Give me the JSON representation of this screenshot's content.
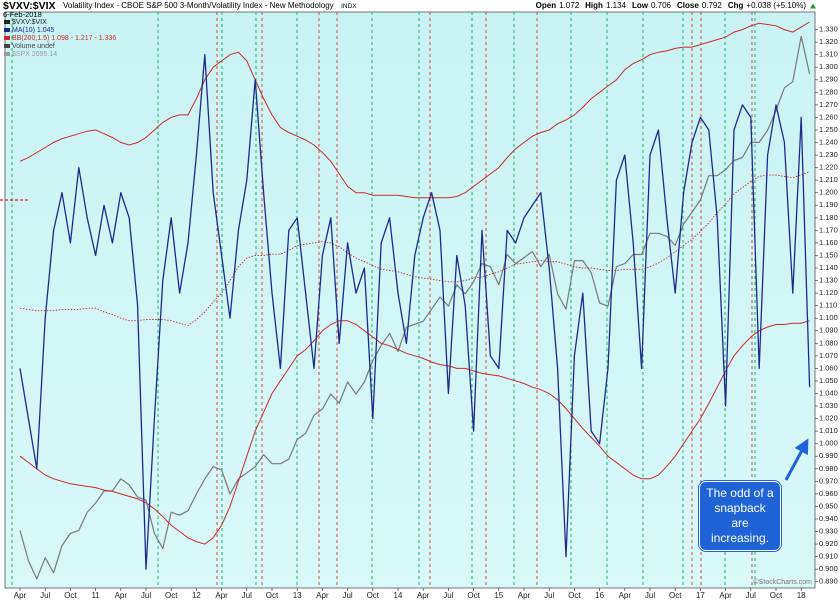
{
  "chart_data": {
    "type": "line",
    "symbol": "$VXV:$VIX",
    "title": "Volatility Index - CBOE S&P 500 3-Month/Volatility Index - New Methodology",
    "exchange": "INDX",
    "date": "6-Feb-2018",
    "quote": [
      [
        "Open",
        "1.072"
      ],
      [
        "High",
        "1.134"
      ],
      [
        "Low",
        "0.706"
      ],
      [
        "Close",
        "0.792"
      ],
      [
        "Chg",
        "+0.038 (+5.10%)"
      ]
    ],
    "price_label": "$VXV:$VIX",
    "volume_label": "Volume undef",
    "watermark": "©StockCharts.com",
    "annotation": "The odd of a snapback are increasing.",
    "categories": [
      "Apr",
      null,
      null,
      "Jul",
      null,
      null,
      "Oct",
      null,
      null,
      "11",
      null,
      null,
      "Apr",
      null,
      null,
      "Jul",
      null,
      null,
      "Oct",
      null,
      null,
      "12",
      null,
      null,
      "Apr",
      null,
      null,
      "Jul",
      null,
      null,
      "Oct",
      null,
      null,
      "13",
      null,
      null,
      "Apr",
      null,
      null,
      "Jul",
      null,
      null,
      "Oct",
      null,
      null,
      "14",
      null,
      null,
      "Apr",
      null,
      null,
      "Jul",
      null,
      null,
      "Oct",
      null,
      null,
      "15",
      null,
      null,
      "Apr",
      null,
      null,
      "Jul",
      null,
      null,
      "Oct",
      null,
      null,
      "16",
      null,
      null,
      "Apr",
      null,
      null,
      "Jul",
      null,
      null,
      "Oct",
      null,
      null,
      "17",
      null,
      null,
      "Apr",
      null,
      null,
      "Jul",
      null,
      null,
      "Oct",
      null,
      null,
      "18",
      null
    ],
    "series": [
      {
        "name": "$SPX 2695.14",
        "color": "#7a7a7a",
        "axis": "y2",
        "values": [
          1190,
          1090,
          1030,
          1100,
          1050,
          1140,
          1180,
          1190,
          1250,
          1280,
          1320,
          1320,
          1360,
          1340,
          1300,
          1290,
          1180,
          1130,
          1250,
          1240,
          1255,
          1310,
          1360,
          1400,
          1390,
          1310,
          1360,
          1380,
          1400,
          1440,
          1410,
          1410,
          1425,
          1490,
          1510,
          1570,
          1590,
          1640,
          1610,
          1680,
          1640,
          1680,
          1750,
          1800,
          1840,
          1780,
          1860,
          1870,
          1880,
          1920,
          1960,
          1930,
          2000,
          1970,
          2010,
          2070,
          2060,
          2000,
          2100,
          2070,
          2090,
          2110,
          2060,
          2100,
          1970,
          1920,
          2080,
          2080,
          2040,
          1940,
          1930,
          2060,
          2070,
          2100,
          2100,
          2170,
          2170,
          2160,
          2130,
          2200,
          2240,
          2280,
          2360,
          2360,
          2380,
          2410,
          2420,
          2470,
          2470,
          2510,
          2575,
          2650,
          2670,
          2820,
          2695
        ]
      },
      {
        "name": "BB(200,1.5) 1.098 - 1.217 - 1.336",
        "color": "#cc2929",
        "values": [
          1.108,
          1.107,
          1.106,
          1.106,
          1.106,
          1.107,
          1.107,
          1.107,
          1.108,
          1.108,
          1.105,
          1.103,
          1.1,
          1.098,
          1.098,
          1.099,
          1.099,
          1.099,
          1.098,
          1.096,
          1.094,
          1.099,
          1.105,
          1.113,
          1.12,
          1.13,
          1.141,
          1.148,
          1.15,
          1.15,
          1.151,
          1.151,
          1.154,
          1.158,
          1.159,
          1.16,
          1.161,
          1.16,
          1.157,
          1.152,
          1.148,
          1.145,
          1.142,
          1.139,
          1.138,
          1.137,
          1.135,
          1.133,
          1.132,
          1.131,
          1.13,
          1.129,
          1.129,
          1.13,
          1.132,
          1.133,
          1.135,
          1.137,
          1.14,
          1.143,
          1.144,
          1.145,
          1.146,
          1.145,
          1.145,
          1.143,
          1.141,
          1.14,
          1.14,
          1.139,
          1.138,
          1.138,
          1.139,
          1.139,
          1.139,
          1.141,
          1.144,
          1.148,
          1.153,
          1.158,
          1.163,
          1.169,
          1.176,
          1.184,
          1.191,
          1.199,
          1.204,
          1.209,
          1.213,
          1.214,
          1.214,
          1.213,
          1.212,
          1.214,
          1.217
        ],
        "upper": [
          1.225,
          1.228,
          1.232,
          1.236,
          1.24,
          1.243,
          1.245,
          1.247,
          1.249,
          1.25,
          1.247,
          1.244,
          1.24,
          1.238,
          1.24,
          1.244,
          1.25,
          1.256,
          1.26,
          1.262,
          1.262,
          1.275,
          1.29,
          1.3,
          1.305,
          1.31,
          1.312,
          1.305,
          1.29,
          1.275,
          1.262,
          1.252,
          1.248,
          1.245,
          1.242,
          1.238,
          1.232,
          1.225,
          1.215,
          1.205,
          1.2,
          1.2,
          1.198,
          1.198,
          1.198,
          1.198,
          1.197,
          1.196,
          1.196,
          1.196,
          1.196,
          1.196,
          1.197,
          1.2,
          1.205,
          1.21,
          1.215,
          1.22,
          1.228,
          1.235,
          1.24,
          1.245,
          1.248,
          1.25,
          1.255,
          1.258,
          1.262,
          1.268,
          1.275,
          1.28,
          1.285,
          1.29,
          1.298,
          1.303,
          1.306,
          1.31,
          1.312,
          1.313,
          1.315,
          1.316,
          1.316,
          1.318,
          1.32,
          1.322,
          1.324,
          1.328,
          1.33,
          1.333,
          1.335,
          1.334,
          1.333,
          1.33,
          1.328,
          1.332,
          1.336
        ],
        "lower": [
          0.99,
          0.985,
          0.98,
          0.975,
          0.972,
          0.97,
          0.968,
          0.967,
          0.966,
          0.965,
          0.963,
          0.962,
          0.96,
          0.958,
          0.956,
          0.953,
          0.948,
          0.942,
          0.935,
          0.93,
          0.925,
          0.922,
          0.92,
          0.925,
          0.935,
          0.95,
          0.97,
          0.99,
          1.01,
          1.025,
          1.04,
          1.05,
          1.06,
          1.07,
          1.075,
          1.082,
          1.09,
          1.095,
          1.098,
          1.098,
          1.095,
          1.09,
          1.085,
          1.08,
          1.078,
          1.075,
          1.072,
          1.07,
          1.068,
          1.065,
          1.063,
          1.062,
          1.06,
          1.06,
          1.058,
          1.056,
          1.055,
          1.054,
          1.052,
          1.05,
          1.048,
          1.045,
          1.043,
          1.04,
          1.035,
          1.028,
          1.02,
          1.012,
          1.005,
          0.998,
          0.99,
          0.985,
          0.98,
          0.975,
          0.972,
          0.972,
          0.975,
          0.982,
          0.99,
          1.0,
          1.01,
          1.02,
          1.032,
          1.045,
          1.058,
          1.07,
          1.078,
          1.085,
          1.09,
          1.093,
          1.095,
          1.095,
          1.096,
          1.096,
          1.098
        ]
      },
      {
        "name": "MA(10) 1.045",
        "color": "#1c2a8c",
        "values": [
          1.06,
          1.02,
          0.98,
          1.1,
          1.17,
          1.2,
          1.16,
          1.22,
          1.18,
          1.15,
          1.19,
          1.16,
          1.2,
          1.18,
          1.11,
          0.9,
          1.02,
          1.13,
          1.18,
          1.12,
          1.16,
          1.23,
          1.31,
          1.2,
          1.15,
          1.1,
          1.17,
          1.21,
          1.29,
          1.2,
          1.12,
          1.06,
          1.17,
          1.18,
          1.12,
          1.06,
          1.15,
          1.18,
          1.08,
          1.16,
          1.12,
          1.14,
          1.02,
          1.16,
          1.18,
          1.12,
          1.08,
          1.15,
          1.18,
          1.2,
          1.17,
          1.04,
          1.15,
          1.11,
          1.01,
          1.17,
          1.07,
          1.06,
          1.17,
          1.16,
          1.18,
          1.19,
          1.2,
          1.14,
          1.06,
          0.91,
          1.07,
          1.12,
          1.01,
          1.0,
          1.06,
          1.21,
          1.23,
          1.16,
          1.06,
          1.23,
          1.25,
          1.18,
          1.12,
          1.2,
          1.24,
          1.26,
          1.25,
          1.18,
          1.03,
          1.25,
          1.27,
          1.26,
          1.06,
          1.23,
          1.27,
          1.24,
          1.12,
          1.26,
          1.045
        ]
      }
    ],
    "ylim": [
      0.885,
      1.344
    ],
    "y2lim": [
      1000,
      2900
    ],
    "yticks": [
      {
        "value": 0.89,
        "label": "0.890"
      },
      {
        "value": 0.9,
        "label": "0.900"
      },
      {
        "value": 0.91,
        "label": "0.910"
      },
      {
        "value": 0.92,
        "label": "0.920"
      },
      {
        "value": 0.93,
        "label": "0.930"
      },
      {
        "value": 0.94,
        "label": "0.940"
      },
      {
        "value": 0.95,
        "label": "0.950"
      },
      {
        "value": 0.96,
        "label": "0.960"
      },
      {
        "value": 0.97,
        "label": "0.970"
      },
      {
        "value": 0.98,
        "label": "0.980"
      },
      {
        "value": 0.99,
        "label": "0.990"
      },
      {
        "value": 1.0,
        "label": "1.000"
      },
      {
        "value": 1.01,
        "label": "1.010"
      },
      {
        "value": 1.02,
        "label": "1.020"
      },
      {
        "value": 1.03,
        "label": "1.030"
      },
      {
        "value": 1.04,
        "label": "1.040"
      },
      {
        "value": 1.05,
        "label": "1.050"
      },
      {
        "value": 1.06,
        "label": "1.060"
      },
      {
        "value": 1.07,
        "label": "1.070"
      },
      {
        "value": 1.08,
        "label": "1.080"
      },
      {
        "value": 1.09,
        "label": "1.090"
      },
      {
        "value": 1.1,
        "label": "1.100"
      },
      {
        "value": 1.11,
        "label": "1.110"
      },
      {
        "value": 1.12,
        "label": "1.120"
      },
      {
        "value": 1.13,
        "label": "1.130"
      },
      {
        "value": 1.14,
        "label": "1.140"
      },
      {
        "value": 1.15,
        "label": "1.150"
      },
      {
        "value": 1.16,
        "label": "1.160"
      },
      {
        "value": 1.17,
        "label": "1.170"
      },
      {
        "value": 1.18,
        "label": "1.180"
      },
      {
        "value": 1.19,
        "label": "1.190"
      },
      {
        "value": 1.2,
        "label": "1.200"
      },
      {
        "value": 1.21,
        "label": "1.210"
      },
      {
        "value": 1.22,
        "label": "1.220"
      },
      {
        "value": 1.23,
        "label": "1.230"
      },
      {
        "value": 1.24,
        "label": "1.240"
      },
      {
        "value": 1.25,
        "label": "1.250"
      },
      {
        "value": 1.26,
        "label": "1.260"
      },
      {
        "value": 1.27,
        "label": "1.270"
      },
      {
        "value": 1.28,
        "label": "1.280"
      },
      {
        "value": 1.29,
        "label": "1.290"
      },
      {
        "value": 1.3,
        "label": "1.300"
      },
      {
        "value": 1.31,
        "label": "1.310"
      },
      {
        "value": 1.32,
        "label": "1.320"
      },
      {
        "value": 1.33,
        "label": "1.330"
      }
    ],
    "grid": false
  }
}
